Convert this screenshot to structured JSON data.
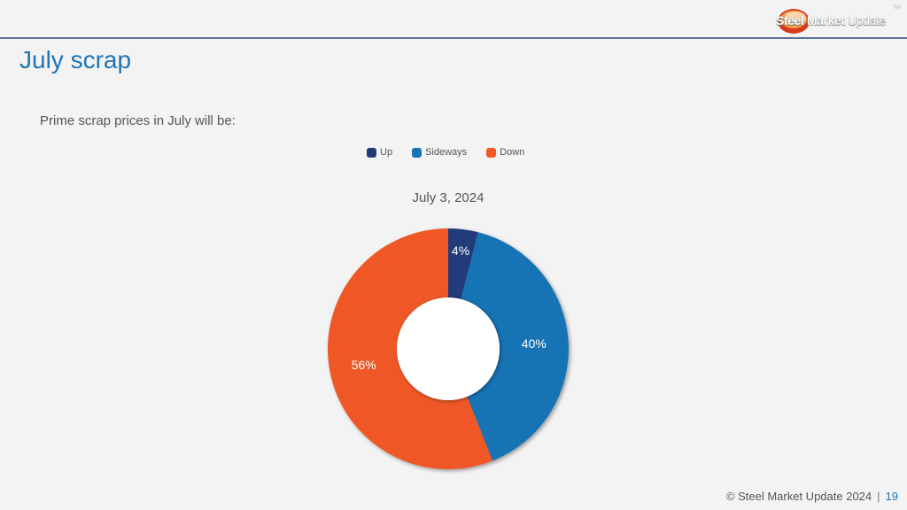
{
  "header": {
    "logo_text_bold": "Steel Market",
    "logo_text_light": "Update",
    "logo_tm": "TM"
  },
  "slide": {
    "title": "July scrap",
    "subtitle": "Prime scrap prices in July will be:"
  },
  "chart_data": {
    "type": "pie",
    "variant": "donut",
    "title": "July 3, 2024",
    "legend_position": "top",
    "categories": [
      "Up",
      "Sideways",
      "Down"
    ],
    "values": [
      4,
      40,
      56
    ],
    "labels": [
      "4%",
      "40%",
      "56%"
    ],
    "colors": [
      "#223a7a",
      "#1673b4",
      "#ef5927"
    ]
  },
  "footer": {
    "copyright": "© Steel Market Update 2024",
    "separator": "|",
    "page_number": "19"
  }
}
